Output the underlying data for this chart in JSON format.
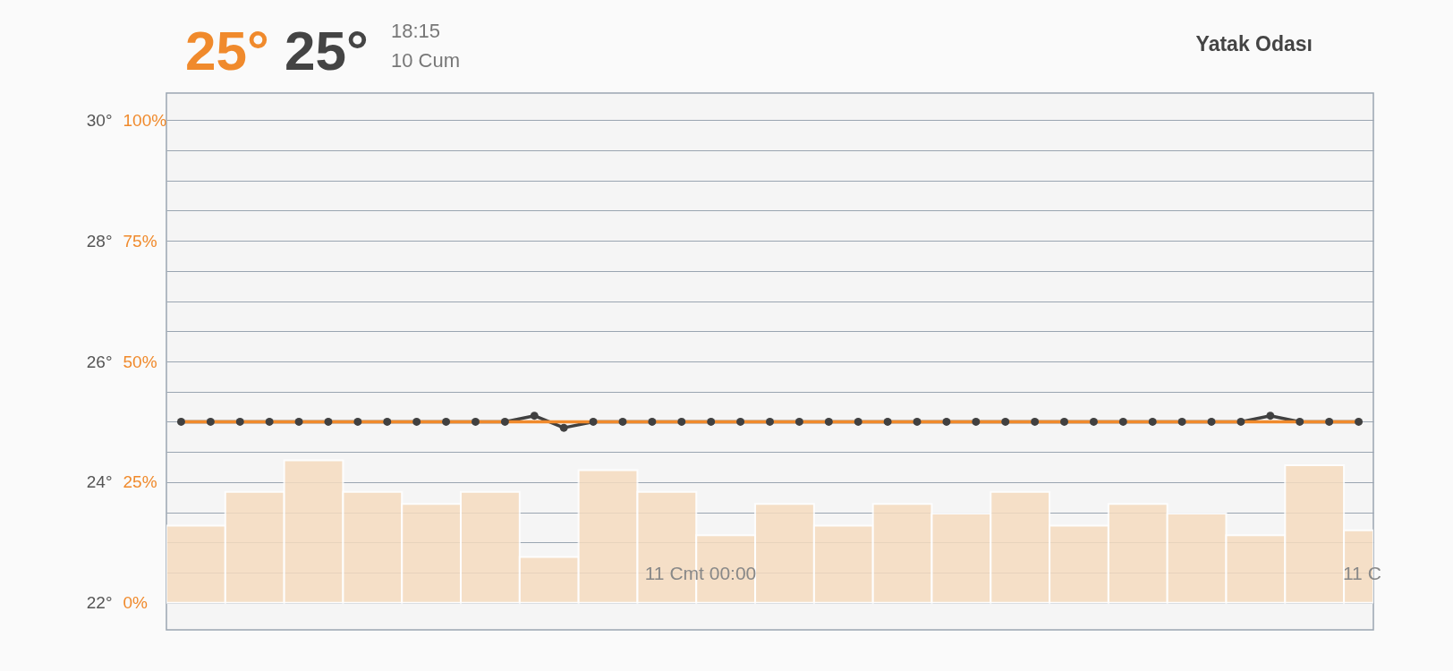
{
  "chart_data": {
    "type": "line",
    "title": "Yatak Odası",
    "annotations": [
      "25°",
      "25°",
      "18:15",
      "10 Cum",
      "11 C",
      "11 Cmt 00:00"
    ],
    "categories": [
      null,
      null,
      null,
      null,
      null,
      null,
      null,
      null,
      null,
      null,
      null,
      null,
      null,
      null,
      null,
      null,
      null,
      null,
      null,
      null,
      null,
      null,
      null,
      null,
      null,
      null,
      null,
      null,
      null,
      null,
      null,
      null,
      null,
      null,
      null,
      null,
      null,
      null,
      null,
      null,
      null
    ],
    "ylim": [
      21.55,
      30.45
    ],
    "yticks": [
      {
        "value": 22,
        "label": "22°"
      },
      {
        "value": 22.5,
        "label": null
      },
      {
        "value": 23,
        "label": null
      },
      {
        "value": 23.5,
        "label": null
      },
      {
        "value": 24,
        "label": "24°"
      },
      {
        "value": 24.5,
        "label": null
      },
      {
        "value": 25,
        "label": null
      },
      {
        "value": 25.5,
        "label": null
      },
      {
        "value": 26,
        "label": "26°"
      },
      {
        "value": 26.5,
        "label": null
      },
      {
        "value": 27,
        "label": null
      },
      {
        "value": 27.5,
        "label": null
      },
      {
        "value": 28,
        "label": "28°"
      },
      {
        "value": 28.5,
        "label": null
      },
      {
        "value": 29,
        "label": null
      },
      {
        "value": 29.5,
        "label": null
      },
      {
        "value": 30,
        "label": "30°"
      }
    ],
    "y2lim": [
      -5.6,
      105.6
    ],
    "y2ticks": [
      {
        "value": 0,
        "label": "0%"
      },
      {
        "value": 25,
        "label": "25%"
      },
      {
        "value": 50,
        "label": "50%"
      },
      {
        "value": 75,
        "label": "75%"
      },
      {
        "value": 100,
        "label": "100%"
      }
    ],
    "grid": "y",
    "series": [
      {
        "type": "bar",
        "axis": "y2",
        "color": "#f5dcc0",
        "values": [
          16,
          null,
          23,
          null,
          29.5,
          null,
          23,
          null,
          20.5,
          null,
          23,
          null,
          9.5,
          null,
          27.5,
          null,
          23,
          null,
          14,
          null,
          20.5,
          null,
          16,
          null,
          20.5,
          null,
          18.5,
          null,
          23,
          null,
          16,
          null,
          20.5,
          null,
          18.5,
          null,
          14,
          null,
          28.5,
          null,
          15
        ]
      },
      {
        "color": "#404040",
        "marker": "circle",
        "values": [
          25,
          25,
          25,
          25,
          25,
          25,
          25,
          25,
          25,
          25,
          25,
          25,
          25.1,
          24.9,
          25,
          25,
          25,
          25,
          25,
          25,
          25,
          25,
          25,
          25,
          25,
          25,
          25,
          25,
          25,
          25,
          25,
          25,
          25,
          25,
          25,
          25,
          25,
          25.1,
          25,
          25,
          25
        ]
      },
      {
        "color": "#f08a2c",
        "values": [
          25,
          25,
          25,
          25,
          25,
          25,
          25,
          25,
          25,
          25,
          25,
          25,
          25,
          25,
          25,
          25,
          25,
          25,
          25,
          25,
          25,
          25,
          25,
          25,
          25,
          25,
          25,
          25,
          25,
          25,
          25,
          25,
          25,
          25,
          25,
          25,
          25,
          25,
          25,
          25,
          25
        ]
      }
    ]
  }
}
